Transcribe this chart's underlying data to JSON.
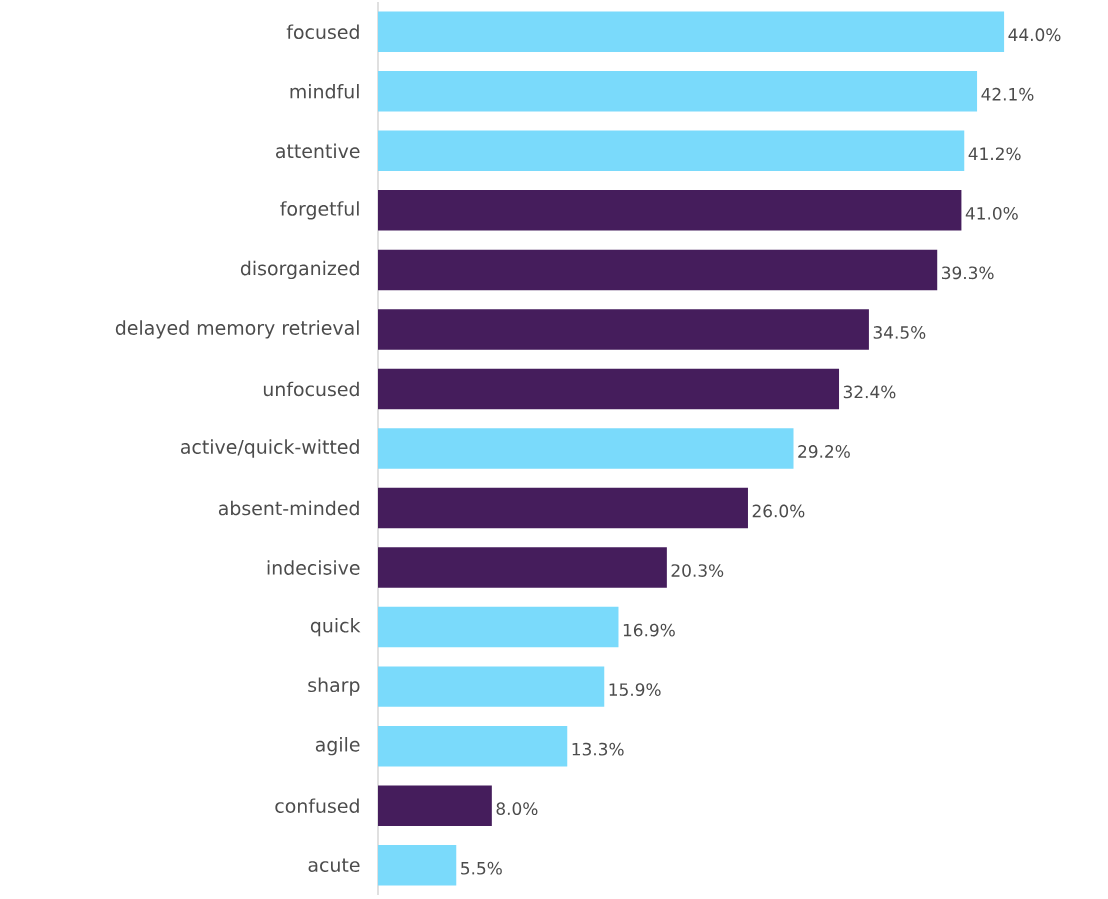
{
  "chart_data": {
    "type": "bar",
    "orientation": "horizontal",
    "categories": [
      "focused",
      "mindful",
      "attentive",
      "forgetful",
      "disorganized",
      "delayed memory retrieval",
      "unfocused",
      "active/quick-witted",
      "absent-minded",
      "indecisive",
      "quick",
      "sharp",
      "agile",
      "confused",
      "acute"
    ],
    "values": [
      44.0,
      42.1,
      41.2,
      41.0,
      39.3,
      34.5,
      32.4,
      29.2,
      26.0,
      20.3,
      16.9,
      15.9,
      13.3,
      8.0,
      5.5
    ],
    "value_labels": [
      "44.0%",
      "42.1%",
      "41.2%",
      "41.0%",
      "39.3%",
      "34.5%",
      "32.4%",
      "29.2%",
      "26.0%",
      "20.3%",
      "16.9%",
      "15.9%",
      "13.3%",
      "8.0%",
      "5.5%"
    ],
    "colors": [
      "#7adafb",
      "#7adafb",
      "#7adafb",
      "#451d5c",
      "#451d5c",
      "#451d5c",
      "#451d5c",
      "#7adafb",
      "#451d5c",
      "#451d5c",
      "#7adafb",
      "#7adafb",
      "#7adafb",
      "#451d5c",
      "#7adafb"
    ]
  }
}
